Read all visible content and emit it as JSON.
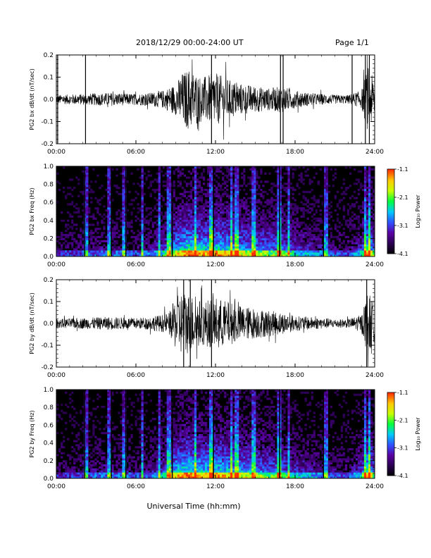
{
  "header": {
    "title": "2018/12/29  00:00-24:00 UT",
    "page": "Page 1/1"
  },
  "xlabel_shared": "Universal Time (hh:mm)",
  "colors": {
    "trace": "#000000",
    "colormap": [
      "#000000",
      "#2a0050",
      "#5a00a0",
      "#3050ff",
      "#00c8ff",
      "#00ff40",
      "#c8ff00",
      "#ffc800",
      "#ff3000"
    ]
  },
  "chart_data": [
    {
      "type": "line",
      "id": "bx-waveform",
      "ylabel": "PG2 bx dB/dt (nT/sec)",
      "xlim": [
        0,
        24
      ],
      "ylim": [
        -0.2,
        0.2
      ],
      "yticks": [
        "0.2",
        "0.1",
        "0.0",
        "-0.1",
        "-0.2"
      ],
      "xticks": [
        "00:00",
        "06:00",
        "12:00",
        "18:00",
        "24:00"
      ],
      "envelope": {
        "x_hours": [
          0,
          2,
          4,
          6,
          7,
          8,
          9,
          9.5,
          10,
          11,
          12,
          13,
          14,
          15,
          16,
          17,
          18,
          19,
          20,
          21,
          22,
          23,
          23.5,
          24
        ],
        "amplitude": [
          0.02,
          0.025,
          0.03,
          0.025,
          0.03,
          0.04,
          0.07,
          0.12,
          0.14,
          0.1,
          0.12,
          0.09,
          0.07,
          0.06,
          0.05,
          0.06,
          0.04,
          0.03,
          0.025,
          0.02,
          0.02,
          0.04,
          0.15,
          0.08
        ]
      },
      "spikes_hours": [
        0.1,
        2.2,
        11.7,
        16.9,
        17.1,
        22.3,
        23.3,
        23.6
      ],
      "grid": false
    },
    {
      "type": "heatmap",
      "id": "bx-spectrogram",
      "ylabel": "PG2 bx Freq (Hz)",
      "xlim": [
        0,
        24
      ],
      "ylim": [
        0,
        1.0
      ],
      "yticks": [
        "1.0",
        "0.8",
        "0.6",
        "0.4",
        "0.2",
        "0.0"
      ],
      "xticks": [
        "00:00",
        "06:00",
        "12:00",
        "18:00",
        "24:00"
      ],
      "colorbar": {
        "label": "Log₁₀ Power",
        "ticks": [
          "-1.1",
          "-2.1",
          "-3.1",
          "-4.1"
        ],
        "range": [
          -4.1,
          -1.1
        ]
      },
      "activity": {
        "x_hours": [
          0,
          2,
          4,
          6,
          7,
          8,
          9,
          10,
          11,
          12,
          13,
          14,
          15,
          16,
          17,
          18,
          19,
          20,
          21,
          22,
          23,
          23.5,
          24
        ],
        "level": [
          0.15,
          0.2,
          0.25,
          0.2,
          0.25,
          0.35,
          0.55,
          0.7,
          0.6,
          0.65,
          0.6,
          0.55,
          0.5,
          0.45,
          0.45,
          0.35,
          0.3,
          0.25,
          0.2,
          0.2,
          0.35,
          0.7,
          0.4
        ]
      },
      "vertical_streaks_hours": [
        2.2,
        4.0,
        5.1,
        6.5,
        7.8,
        8.5,
        10.5,
        11.7,
        13.2,
        13.6,
        14.9,
        16.8,
        17.5,
        20.3,
        23.3,
        23.6
      ]
    },
    {
      "type": "line",
      "id": "by-waveform",
      "ylabel": "PG2 by dB/dt (nT/sec)",
      "xlim": [
        0,
        24
      ],
      "ylim": [
        -0.2,
        0.2
      ],
      "yticks": [
        "0.2",
        "0.1",
        "0.0",
        "-0.1",
        "-0.2"
      ],
      "xticks": [
        "00:00",
        "06:00",
        "12:00",
        "18:00",
        "24:00"
      ],
      "envelope": {
        "x_hours": [
          0,
          2,
          4,
          6,
          7,
          8,
          8.5,
          9,
          9.5,
          10,
          11,
          12,
          13,
          14,
          15,
          16,
          17,
          18,
          19,
          20,
          21,
          22,
          23,
          23.5,
          24
        ],
        "amplitude": [
          0.02,
          0.025,
          0.03,
          0.025,
          0.03,
          0.04,
          0.05,
          0.12,
          0.15,
          0.14,
          0.1,
          0.12,
          0.1,
          0.08,
          0.07,
          0.06,
          0.05,
          0.035,
          0.03,
          0.025,
          0.02,
          0.02,
          0.04,
          0.15,
          0.08
        ]
      },
      "spikes_hours": [
        9.6,
        10.1,
        11.7,
        23.4
      ],
      "grid": false
    },
    {
      "type": "heatmap",
      "id": "by-spectrogram",
      "ylabel": "PG2 by Freq (Hz)",
      "xlim": [
        0,
        24
      ],
      "ylim": [
        0,
        1.0
      ],
      "yticks": [
        "1.0",
        "0.8",
        "0.6",
        "0.4",
        "0.2",
        "0.0"
      ],
      "xticks": [
        "00:00",
        "06:00",
        "12:00",
        "18:00",
        "24:00"
      ],
      "colorbar": {
        "label": "Log₁₀ Power",
        "ticks": [
          "-1.1",
          "-2.1",
          "-3.1",
          "-4.1"
        ],
        "range": [
          -4.1,
          -1.1
        ]
      },
      "activity": {
        "x_hours": [
          0,
          2,
          4,
          6,
          7,
          8,
          9,
          10,
          11,
          12,
          13,
          14,
          15,
          16,
          17,
          18,
          19,
          20,
          21,
          22,
          23,
          23.5,
          24
        ],
        "level": [
          0.15,
          0.2,
          0.25,
          0.2,
          0.25,
          0.35,
          0.6,
          0.7,
          0.6,
          0.65,
          0.6,
          0.55,
          0.5,
          0.45,
          0.45,
          0.35,
          0.3,
          0.25,
          0.2,
          0.2,
          0.35,
          0.7,
          0.4
        ]
      },
      "vertical_streaks_hours": [
        2.2,
        4.0,
        5.1,
        6.5,
        7.8,
        8.5,
        10.5,
        11.7,
        13.2,
        13.6,
        14.9,
        16.8,
        17.5,
        20.3,
        23.3,
        23.6
      ]
    }
  ]
}
